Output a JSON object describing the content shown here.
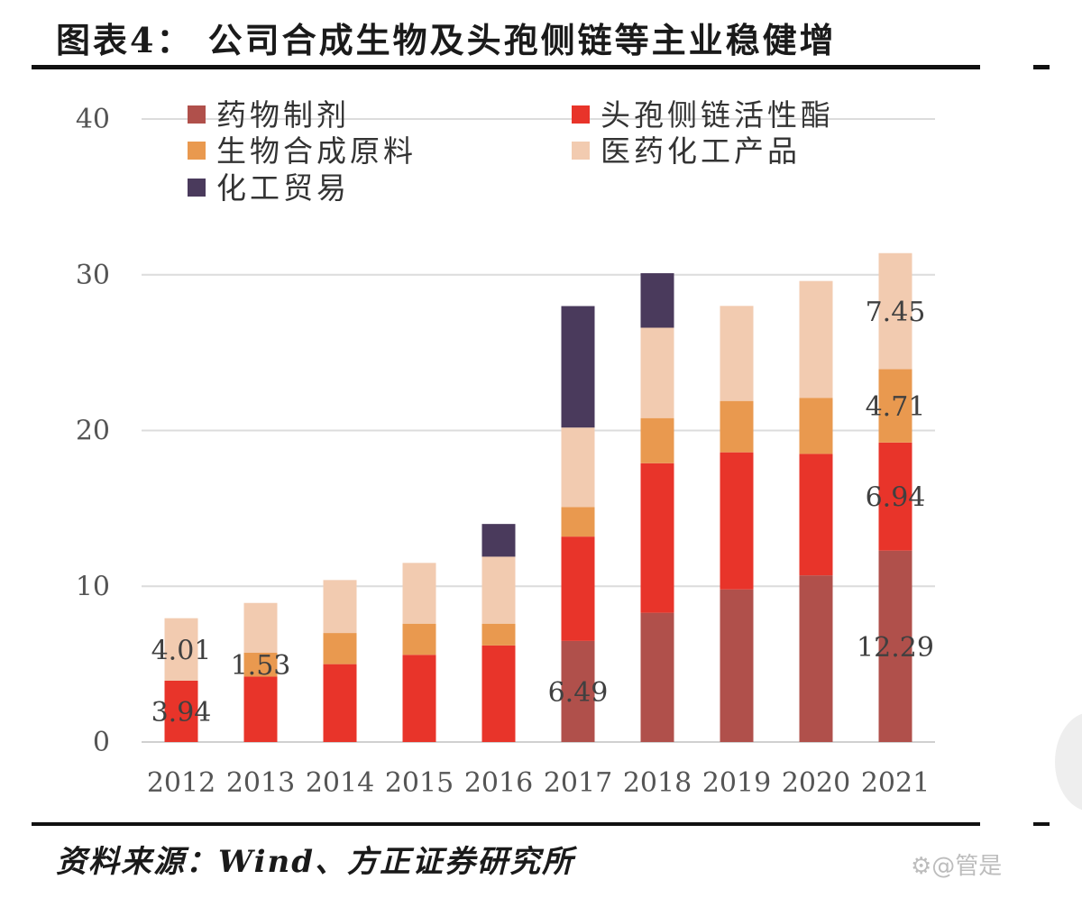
{
  "page": {
    "title": "图表4：  公司合成生物及头孢侧链等主业稳健增",
    "source": "资料来源：Wind、方正证券研究所",
    "watermark": "⚙@管是"
  },
  "chart_data": {
    "type": "bar",
    "stacked": true,
    "title": "",
    "xlabel": "",
    "ylabel": "",
    "ylim": [
      0,
      40
    ],
    "yticks": [
      0,
      10,
      20,
      30,
      40
    ],
    "grid": true,
    "legend_position": "top",
    "categories": [
      "2012",
      "2013",
      "2014",
      "2015",
      "2016",
      "2017",
      "2018",
      "2019",
      "2020",
      "2021"
    ],
    "series": [
      {
        "name": "药物制剂",
        "color": "#b0504b",
        "values": [
          0,
          0,
          0,
          0,
          0,
          6.49,
          8.3,
          9.8,
          10.7,
          12.29
        ]
      },
      {
        "name": "头孢侧链活性酯",
        "color": "#e8342a",
        "values": [
          3.94,
          4.2,
          5.0,
          5.6,
          6.2,
          6.7,
          9.6,
          8.8,
          7.8,
          6.94
        ]
      },
      {
        "name": "生物合成原料",
        "color": "#e9994f",
        "values": [
          0,
          1.53,
          2.0,
          2.0,
          1.4,
          1.9,
          2.9,
          3.3,
          3.6,
          4.71
        ]
      },
      {
        "name": "医药化工产品",
        "color": "#f2cbb0",
        "values": [
          4.01,
          3.2,
          3.4,
          3.9,
          4.3,
          5.1,
          5.8,
          6.1,
          7.5,
          7.45
        ]
      },
      {
        "name": "化工贸易",
        "color": "#4a3a5c",
        "values": [
          0,
          0,
          0,
          0,
          2.1,
          7.8,
          3.5,
          0,
          0,
          0
        ]
      }
    ],
    "data_labels": [
      {
        "category": "2012",
        "series": "头孢侧链活性酯",
        "text": "3.94"
      },
      {
        "category": "2012",
        "series": "医药化工产品",
        "text": "4.01"
      },
      {
        "category": "2013",
        "series": "生物合成原料",
        "text": "1.53"
      },
      {
        "category": "2017",
        "series": "药物制剂",
        "text": "6.49"
      },
      {
        "category": "2021",
        "series": "药物制剂",
        "text": "12.29"
      },
      {
        "category": "2021",
        "series": "头孢侧链活性酯",
        "text": "6.94"
      },
      {
        "category": "2021",
        "series": "生物合成原料",
        "text": "4.71"
      },
      {
        "category": "2021",
        "series": "医药化工产品",
        "text": "7.45"
      }
    ]
  }
}
